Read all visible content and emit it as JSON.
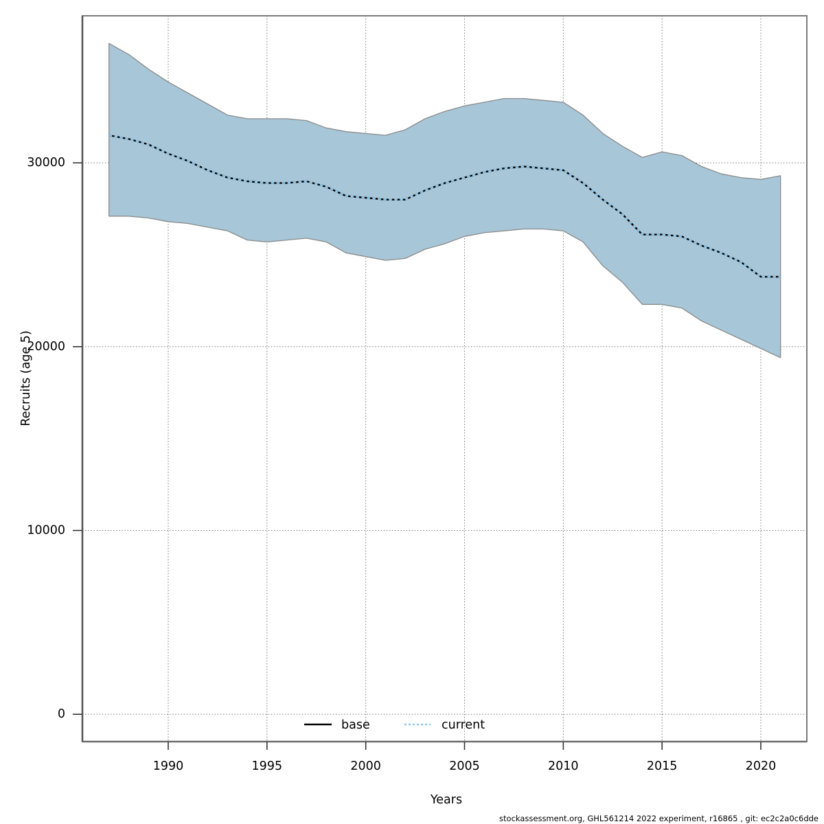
{
  "figure": {
    "footer": "stockassessment.org, GHL561214 2022 experiment, r16865 , git: ec2c2a0c6dde"
  },
  "chart_data": {
    "type": "line",
    "title": "",
    "xlabel": "Years",
    "ylabel": "Recruits (age 5)",
    "grid": true,
    "legend_position": "bottom-center",
    "legend": [
      {
        "label": "base",
        "style": "solid",
        "color": "#000000"
      },
      {
        "label": "current",
        "style": "dotted",
        "color": "#8fc7e8"
      }
    ],
    "x": [
      1987,
      1988,
      1989,
      1990,
      1991,
      1992,
      1993,
      1994,
      1995,
      1996,
      1997,
      1998,
      1999,
      2000,
      2001,
      2002,
      2003,
      2004,
      2005,
      2006,
      2007,
      2008,
      2009,
      2010,
      2011,
      2012,
      2013,
      2014,
      2015,
      2016,
      2017,
      2018,
      2019,
      2020,
      2021
    ],
    "series": [
      {
        "name": "base",
        "values": [
          31500,
          31300,
          31000,
          30500,
          30100,
          29600,
          29200,
          29000,
          28900,
          28900,
          29000,
          28700,
          28200,
          28100,
          28000,
          28000,
          28500,
          28900,
          29200,
          29500,
          29700,
          29800,
          29700,
          29600,
          28900,
          28000,
          27200,
          26100,
          26100,
          26000,
          25500,
          25100,
          24600,
          23800,
          23800
        ]
      },
      {
        "name": "current",
        "values": [
          31500,
          31300,
          31000,
          30500,
          30100,
          29600,
          29200,
          29000,
          28900,
          28900,
          29000,
          28700,
          28200,
          28100,
          28000,
          28000,
          28500,
          28900,
          29200,
          29500,
          29700,
          29800,
          29700,
          29600,
          28900,
          28000,
          27200,
          26100,
          26100,
          26000,
          25500,
          25100,
          24600,
          23800,
          23800
        ]
      }
    ],
    "band": {
      "name": "current-confidence-interval",
      "lower": [
        27100,
        27100,
        27000,
        26800,
        26700,
        26500,
        26300,
        25800,
        25700,
        25800,
        25900,
        25700,
        25100,
        24900,
        24700,
        24800,
        25300,
        25600,
        26000,
        26200,
        26300,
        26400,
        26400,
        26300,
        25700,
        24400,
        23500,
        22300,
        22300,
        22100,
        21400,
        20900,
        20400,
        19900,
        19400
      ],
      "upper": [
        36500,
        35900,
        35100,
        34400,
        33800,
        33200,
        32600,
        32400,
        32400,
        32400,
        32300,
        31900,
        31700,
        31600,
        31500,
        31800,
        32400,
        32800,
        33100,
        33300,
        33500,
        33500,
        33400,
        33300,
        32600,
        31600,
        30900,
        30300,
        30600,
        30400,
        29800,
        29400,
        29200,
        29100,
        29300
      ]
    },
    "x_ticks": [
      1990,
      1995,
      2000,
      2005,
      2010,
      2015,
      2020
    ],
    "y_ticks": [
      0,
      10000,
      20000,
      30000
    ],
    "xlim": [
      1985.66,
      2022.33
    ],
    "ylim": [
      -1500,
      38000
    ],
    "colors": {
      "band_fill": "#a7c6d8",
      "band_edge": "#8a8a8a",
      "base_line": "#000000",
      "current_line": "#8fc7e8",
      "grid": "#555555",
      "frame": "#7a7a7a",
      "tick": "#333333"
    }
  }
}
